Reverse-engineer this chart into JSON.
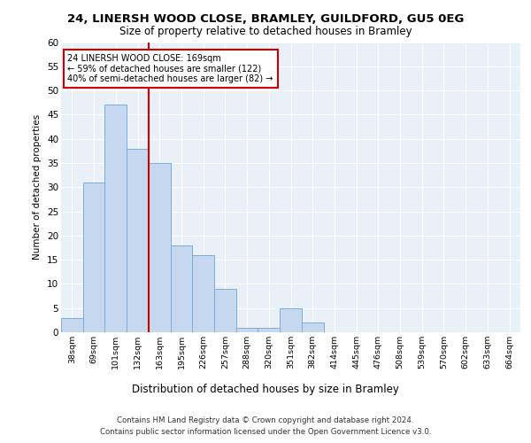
{
  "title1": "24, LINERSH WOOD CLOSE, BRAMLEY, GUILDFORD, GU5 0EG",
  "title2": "Size of property relative to detached houses in Bramley",
  "xlabel": "Distribution of detached houses by size in Bramley",
  "ylabel": "Number of detached properties",
  "bin_labels": [
    "38sqm",
    "69sqm",
    "101sqm",
    "132sqm",
    "163sqm",
    "195sqm",
    "226sqm",
    "257sqm",
    "288sqm",
    "320sqm",
    "351sqm",
    "382sqm",
    "414sqm",
    "445sqm",
    "476sqm",
    "508sqm",
    "539sqm",
    "570sqm",
    "602sqm",
    "633sqm",
    "664sqm"
  ],
  "bar_heights": [
    3,
    31,
    47,
    38,
    35,
    18,
    16,
    9,
    1,
    1,
    5,
    2,
    0,
    0,
    0,
    0,
    0,
    0,
    0,
    0,
    0
  ],
  "bar_color": "#c5d8f0",
  "bar_edgecolor": "#7aaed6",
  "vline_x": 4,
  "vline_color": "#cc0000",
  "annotation_text": "24 LINERSH WOOD CLOSE: 169sqm\n← 59% of detached houses are smaller (122)\n40% of semi-detached houses are larger (82) →",
  "annotation_box_color": "white",
  "annotation_box_edgecolor": "#cc0000",
  "ylim": [
    0,
    60
  ],
  "yticks": [
    0,
    5,
    10,
    15,
    20,
    25,
    30,
    35,
    40,
    45,
    50,
    55,
    60
  ],
  "bg_color": "#eaf0f8",
  "footer1": "Contains HM Land Registry data © Crown copyright and database right 2024.",
  "footer2": "Contains public sector information licensed under the Open Government Licence v3.0."
}
